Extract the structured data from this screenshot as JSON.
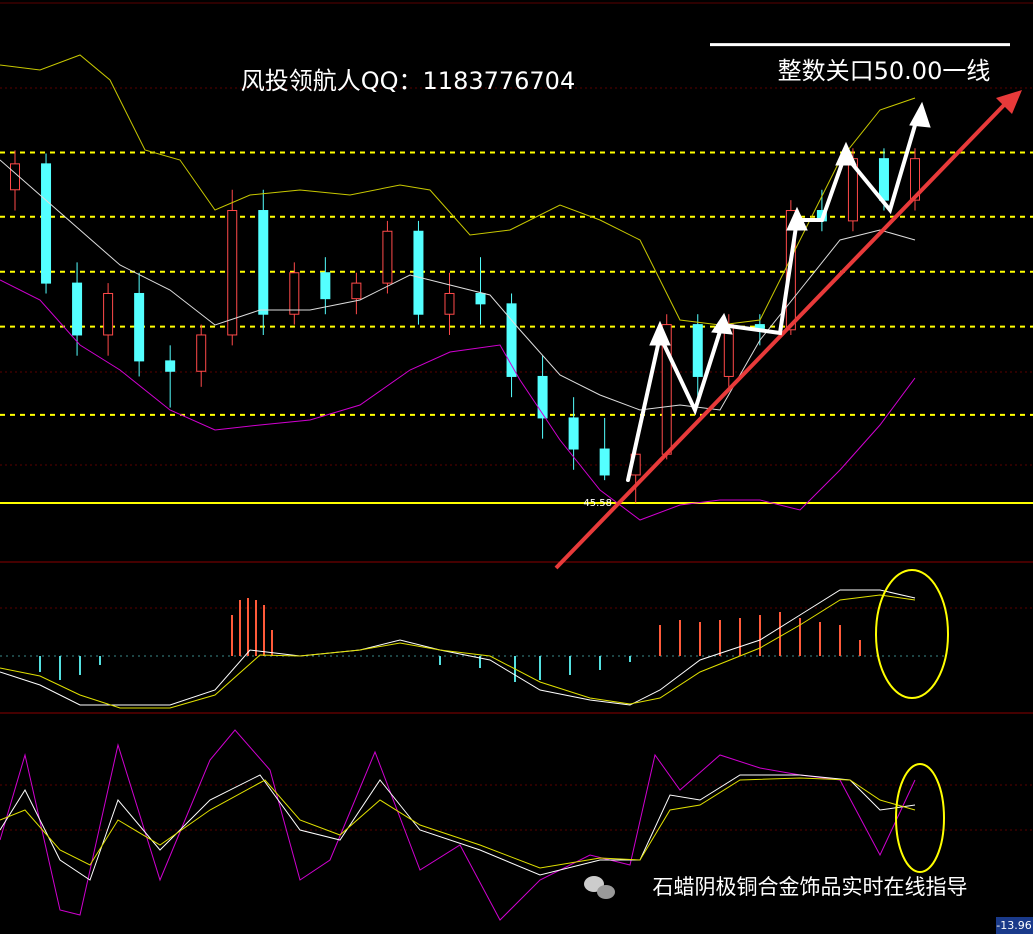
{
  "chart_data": {
    "type": "candlestick",
    "title": "风投领航人QQ：1183776704",
    "annotation": "整数关口50.00一线",
    "watermark": "石蜡阴极铜合金饰品实时在线指导",
    "indicator_readout": "-13.96",
    "categories": [
      null,
      null,
      null,
      null,
      null,
      null,
      null,
      null,
      null,
      null,
      null,
      null,
      null,
      null,
      null,
      null,
      null,
      null,
      null,
      null,
      null,
      null,
      null,
      null,
      null,
      null,
      null,
      null,
      null,
      null
    ],
    "open": [
      48.6,
      48.85,
      47.7,
      47.2,
      47.6,
      46.95,
      46.85,
      47.2,
      48.4,
      47.4,
      47.8,
      47.55,
      47.7,
      48.2,
      47.4,
      47.6,
      47.5,
      46.8,
      46.4,
      46.1,
      45.85,
      46.05,
      47.3,
      46.8,
      47.3,
      47.25,
      48.4,
      48.3,
      48.9,
      48.5
    ],
    "high": [
      48.98,
      48.95,
      47.9,
      47.7,
      47.8,
      47.1,
      47.3,
      48.6,
      48.6,
      47.9,
      47.95,
      47.8,
      48.3,
      48.3,
      47.8,
      47.95,
      47.6,
      47.0,
      46.6,
      46.4,
      46.2,
      47.4,
      47.4,
      47.4,
      47.4,
      48.5,
      48.6,
      49.0,
      49.0,
      49.0
    ],
    "low": [
      48.4,
      47.6,
      47.0,
      47.0,
      46.8,
      46.5,
      46.7,
      47.1,
      47.2,
      47.3,
      47.4,
      47.4,
      47.6,
      47.3,
      47.2,
      47.3,
      46.6,
      46.2,
      45.9,
      45.8,
      45.58,
      46.0,
      46.6,
      46.7,
      47.1,
      47.2,
      48.2,
      48.2,
      48.4,
      48.4
    ],
    "close": [
      48.85,
      47.7,
      47.2,
      47.6,
      46.95,
      46.85,
      47.2,
      48.4,
      47.4,
      47.8,
      47.55,
      47.7,
      48.2,
      47.4,
      47.6,
      47.5,
      46.8,
      46.4,
      46.1,
      45.85,
      46.05,
      47.3,
      46.8,
      47.3,
      47.25,
      48.4,
      48.3,
      48.9,
      48.5,
      48.9
    ],
    "up_color": "#ff4a4a",
    "down_color": "#54ffff",
    "ylim": [
      45.03,
      50.43
    ],
    "low_marker": {
      "value": 45.58,
      "label": "45.58"
    },
    "key_level": 50.0,
    "support_resistance": [
      50.47,
      45.58
    ],
    "dashed_levels": [
      48.96,
      48.34,
      47.81,
      47.28,
      46.43
    ]
  }
}
